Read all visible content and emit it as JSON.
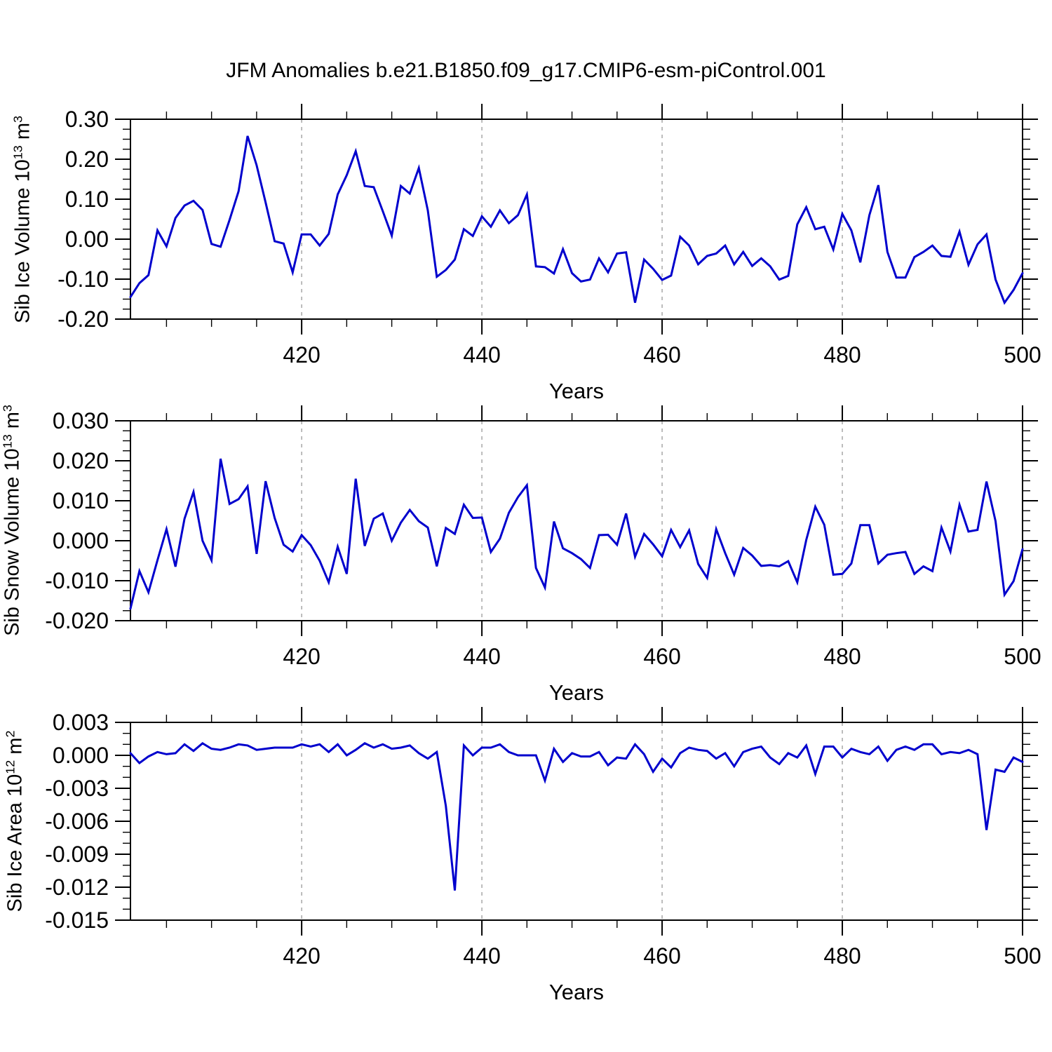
{
  "title": "JFM Anomalies b.e21.B1850.f09_g17.CMIP6-esm-piControl.001",
  "colors": {
    "line": "#0000CD",
    "grid": "#999999",
    "axis": "#000000",
    "background": "#FFFFFF",
    "text": "#000000"
  },
  "chart_data": [
    {
      "type": "line",
      "ylabel_parts": [
        "Sib Ice Volume 10",
        "13",
        " m",
        "3"
      ],
      "xlabel": "Years",
      "x_start": 401,
      "x_end": 500,
      "xticks": [
        420,
        440,
        460,
        480,
        500
      ],
      "xtick_labels": [
        "420",
        "440",
        "460",
        "480",
        "500"
      ],
      "x_minor_step": 5,
      "grid_x": [
        420,
        440,
        460,
        480
      ],
      "ylim": [
        -0.2,
        0.3
      ],
      "yticks": [
        0.3,
        0.2,
        0.1,
        0.0,
        -0.1,
        -0.2
      ],
      "ytick_labels": [
        "0.30",
        "0.20",
        "0.10",
        "0.00",
        "-0.10",
        "-0.20"
      ],
      "y_minor_step": 0.025,
      "values": [
        -0.145,
        -0.11,
        -0.09,
        0.022,
        -0.018,
        0.053,
        0.084,
        0.096,
        0.073,
        -0.012,
        -0.019,
        0.048,
        0.12,
        0.258,
        0.185,
        0.092,
        -0.005,
        -0.011,
        -0.083,
        0.012,
        0.012,
        -0.016,
        0.013,
        0.112,
        0.16,
        0.22,
        0.133,
        0.13,
        0.07,
        0.009,
        0.133,
        0.114,
        0.178,
        0.072,
        -0.094,
        -0.077,
        -0.051,
        0.025,
        0.008,
        0.057,
        0.031,
        0.072,
        0.04,
        0.06,
        0.112,
        -0.068,
        -0.07,
        -0.086,
        -0.025,
        -0.085,
        -0.106,
        -0.101,
        -0.048,
        -0.083,
        -0.036,
        -0.033,
        -0.159,
        -0.051,
        -0.074,
        -0.102,
        -0.091,
        0.006,
        -0.016,
        -0.063,
        -0.042,
        -0.036,
        -0.016,
        -0.063,
        -0.032,
        -0.067,
        -0.048,
        -0.068,
        -0.101,
        -0.092,
        0.037,
        0.08,
        0.025,
        0.031,
        -0.026,
        0.063,
        0.022,
        -0.058,
        0.06,
        0.135,
        -0.032,
        -0.096,
        -0.096,
        -0.045,
        -0.032,
        -0.016,
        -0.042,
        -0.044,
        0.019,
        -0.064,
        -0.013,
        0.012,
        -0.101,
        -0.159,
        -0.127,
        -0.085
      ]
    },
    {
      "type": "line",
      "ylabel_parts": [
        "Sib Snow Volume 10",
        "13",
        " m",
        "3"
      ],
      "xlabel": "Years",
      "x_start": 401,
      "x_end": 500,
      "xticks": [
        420,
        440,
        460,
        480,
        500
      ],
      "xtick_labels": [
        "420",
        "440",
        "460",
        "480",
        "500"
      ],
      "x_minor_step": 5,
      "grid_x": [
        420,
        440,
        460,
        480
      ],
      "ylim": [
        -0.02,
        0.03
      ],
      "yticks": [
        0.03,
        0.02,
        0.01,
        0.0,
        -0.01,
        -0.02
      ],
      "ytick_labels": [
        "0.030",
        "0.020",
        "0.010",
        "0.000",
        "-0.010",
        "-0.020"
      ],
      "y_minor_step": 0.0025,
      "values": [
        -0.017,
        -0.0076,
        -0.0129,
        -0.0049,
        0.0029,
        -0.0065,
        0.0055,
        0.0122,
        0.0,
        -0.0049,
        0.0205,
        0.0092,
        0.0104,
        0.0136,
        -0.0033,
        0.0149,
        0.0057,
        -0.001,
        -0.0027,
        0.0014,
        -0.0011,
        -0.005,
        -0.0104,
        -0.0015,
        -0.0083,
        0.0155,
        -0.0013,
        0.0055,
        0.0068,
        0.0,
        0.0045,
        0.0077,
        0.0049,
        0.0033,
        -0.0064,
        0.0032,
        0.0017,
        0.009,
        0.0057,
        0.0058,
        -0.0028,
        0.0005,
        0.007,
        0.0109,
        0.0139,
        -0.0068,
        -0.0117,
        0.0048,
        -0.0019,
        -0.0031,
        -0.0046,
        -0.0068,
        0.0014,
        0.0015,
        -0.001,
        0.0068,
        -0.004,
        0.0017,
        -0.0009,
        -0.0039,
        0.0027,
        -0.0016,
        0.0026,
        -0.0058,
        -0.0093,
        0.0029,
        -0.0031,
        -0.0085,
        -0.0018,
        -0.0037,
        -0.0063,
        -0.0061,
        -0.0064,
        -0.0051,
        -0.0104,
        0.0002,
        0.0085,
        0.004,
        -0.0085,
        -0.0083,
        -0.0057,
        0.0039,
        0.0039,
        -0.0057,
        -0.0035,
        -0.0031,
        -0.0028,
        -0.0083,
        -0.0064,
        -0.0076,
        0.0033,
        -0.0027,
        0.009,
        0.0023,
        0.0027,
        0.0148,
        0.0049,
        -0.0135,
        -0.0101,
        -0.0021
      ]
    },
    {
      "type": "line",
      "ylabel_parts": [
        "Sib Ice Area 10",
        "12",
        " m",
        "2"
      ],
      "xlabel": "Years",
      "x_start": 401,
      "x_end": 500,
      "xticks": [
        420,
        440,
        460,
        480,
        500
      ],
      "xtick_labels": [
        "420",
        "440",
        "460",
        "480",
        "500"
      ],
      "x_minor_step": 5,
      "grid_x": [
        420,
        440,
        460,
        480
      ],
      "ylim": [
        -0.015,
        0.003
      ],
      "yticks": [
        0.003,
        0.0,
        -0.003,
        -0.006,
        -0.009,
        -0.012,
        -0.015
      ],
      "ytick_labels": [
        "0.003",
        "0.000",
        "-0.003",
        "-0.006",
        "-0.009",
        "-0.012",
        "-0.015"
      ],
      "y_minor_step": 0.001,
      "values": [
        0.0002,
        -0.0007,
        -0.0001,
        0.0003,
        0.0001,
        0.0002,
        0.001,
        0.0004,
        0.0011,
        0.0006,
        0.0005,
        0.0007,
        0.001,
        0.0009,
        0.0005,
        0.0006,
        0.0007,
        0.0007,
        0.0007,
        0.001,
        0.0008,
        0.001,
        0.0003,
        0.001,
        0.0,
        0.0005,
        0.0011,
        0.0007,
        0.001,
        0.0006,
        0.0007,
        0.0009,
        0.0002,
        -0.0003,
        0.0003,
        -0.0046,
        -0.0123,
        0.0009,
        0.0,
        0.0007,
        0.0007,
        0.001,
        0.0003,
        0.0,
        0.0,
        0.0,
        -0.0023,
        0.0006,
        -0.0006,
        0.0002,
        -0.0001,
        -0.0001,
        0.0003,
        -0.0009,
        -0.0002,
        -0.0003,
        0.001,
        0.0001,
        -0.0015,
        -0.0003,
        -0.0011,
        0.0002,
        0.0007,
        0.0005,
        0.0004,
        -0.0003,
        0.0002,
        -0.001,
        0.0003,
        0.0006,
        0.0008,
        -0.0002,
        -0.0008,
        0.0002,
        -0.0002,
        0.0009,
        -0.0017,
        0.0008,
        0.0008,
        -0.0002,
        0.0006,
        0.0003,
        0.0001,
        0.0008,
        -0.0005,
        0.0005,
        0.0008,
        0.0005,
        0.001,
        0.001,
        0.0001,
        0.0003,
        0.0002,
        0.0005,
        0.0001,
        -0.0068,
        -0.0013,
        -0.0015,
        -0.0002,
        -0.0006
      ]
    }
  ]
}
